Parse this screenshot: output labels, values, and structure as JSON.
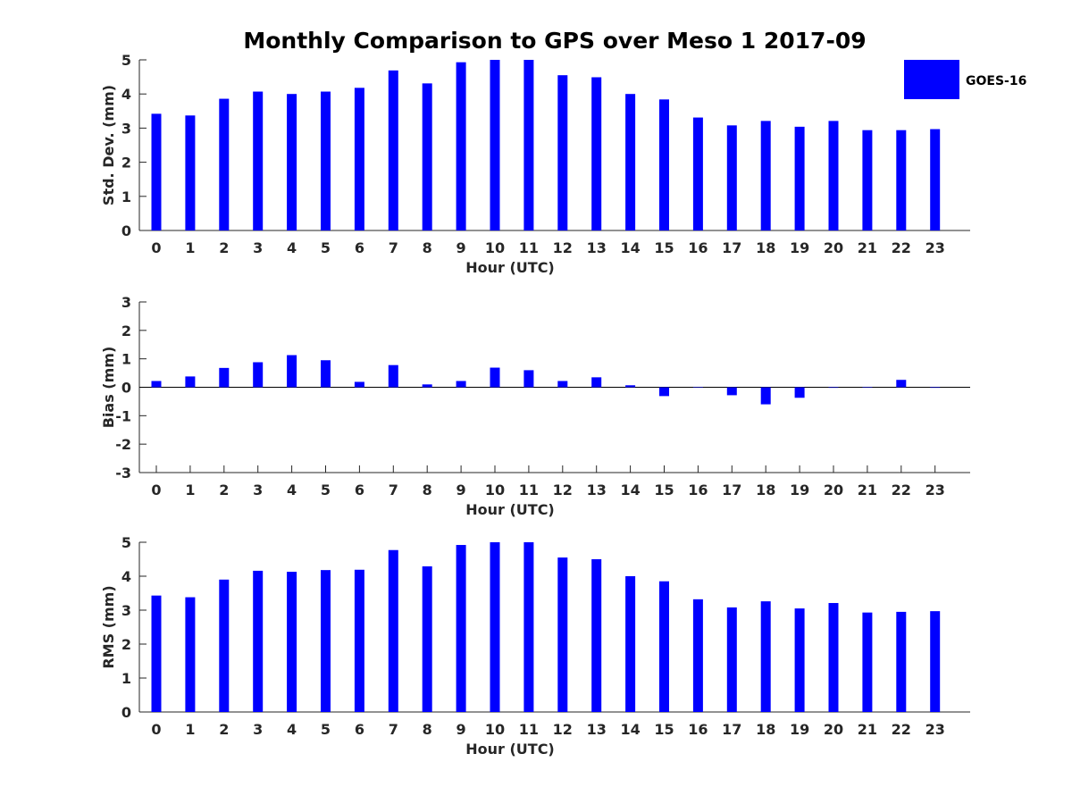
{
  "title": "Monthly Comparison to GPS over Meso 1 2017-09",
  "legend": {
    "label": "GOES-16",
    "color": "#0000ff",
    "location": "top-right"
  },
  "chart_data": [
    {
      "type": "bar",
      "name": "std-dev",
      "categories": [
        "0",
        "1",
        "2",
        "3",
        "4",
        "5",
        "6",
        "7",
        "8",
        "9",
        "10",
        "11",
        "12",
        "13",
        "14",
        "15",
        "16",
        "17",
        "18",
        "19",
        "20",
        "21",
        "22",
        "23"
      ],
      "series": [
        {
          "name": "GOES-16",
          "values": [
            3.42,
            3.37,
            3.86,
            4.07,
            4.0,
            4.07,
            4.18,
            4.69,
            4.31,
            4.93,
            5.0,
            5.0,
            4.55,
            4.49,
            4.0,
            3.84,
            3.31,
            3.08,
            3.21,
            3.04,
            3.21,
            2.94,
            2.94,
            2.97
          ]
        }
      ],
      "xlabel": "Hour (UTC)",
      "ylabel": "Std. Dev. (mm)",
      "ylim": [
        0,
        5
      ],
      "yticks": [
        "0",
        "1",
        "2",
        "3",
        "4",
        "5"
      ],
      "grid": false
    },
    {
      "type": "bar",
      "name": "bias",
      "categories": [
        "0",
        "1",
        "2",
        "3",
        "4",
        "5",
        "6",
        "7",
        "8",
        "9",
        "10",
        "11",
        "12",
        "13",
        "14",
        "15",
        "16",
        "17",
        "18",
        "19",
        "20",
        "21",
        "22",
        "23"
      ],
      "series": [
        {
          "name": "GOES-16",
          "values": [
            0.22,
            0.38,
            0.68,
            0.88,
            1.13,
            0.95,
            0.19,
            0.78,
            0.1,
            0.22,
            0.69,
            0.6,
            0.22,
            0.35,
            0.07,
            -0.31,
            0.0,
            -0.28,
            -0.6,
            -0.37,
            -0.02,
            0.0,
            0.26,
            -0.02
          ]
        }
      ],
      "xlabel": "Hour (UTC)",
      "ylabel": "Bias (mm)",
      "ylim": [
        -3,
        3
      ],
      "yticks": [
        "-3",
        "-2",
        "-1",
        "0",
        "1",
        "2",
        "3"
      ],
      "grid": false
    },
    {
      "type": "bar",
      "name": "rms",
      "categories": [
        "0",
        "1",
        "2",
        "3",
        "4",
        "5",
        "6",
        "7",
        "8",
        "9",
        "10",
        "11",
        "12",
        "13",
        "14",
        "15",
        "16",
        "17",
        "18",
        "19",
        "20",
        "21",
        "22",
        "23"
      ],
      "series": [
        {
          "name": "GOES-16",
          "values": [
            3.43,
            3.38,
            3.9,
            4.16,
            4.13,
            4.18,
            4.19,
            4.77,
            4.29,
            4.92,
            5.0,
            5.0,
            4.55,
            4.5,
            4.0,
            3.85,
            3.32,
            3.08,
            3.26,
            3.05,
            3.21,
            2.93,
            2.95,
            2.97
          ]
        }
      ],
      "xlabel": "Hour (UTC)",
      "ylabel": "RMS (mm)",
      "ylim": [
        0,
        5
      ],
      "yticks": [
        "0",
        "1",
        "2",
        "3",
        "4",
        "5"
      ],
      "grid": false
    }
  ]
}
